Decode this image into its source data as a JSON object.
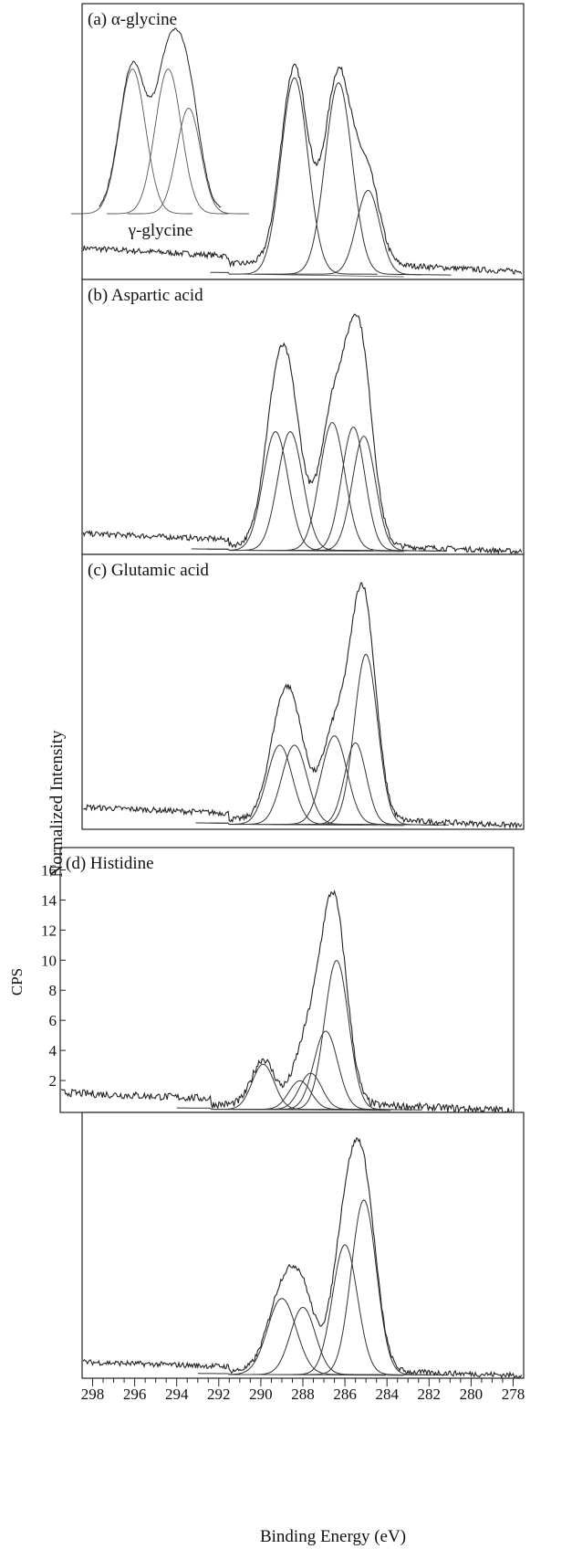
{
  "figure": {
    "ylabel": "Normalized Intensity",
    "xlabel": "Binding Energy (eV)",
    "x_ticks": [
      298,
      296,
      294,
      292,
      290,
      288,
      286,
      284,
      282,
      280,
      278
    ],
    "inset_ylabel": "CPS",
    "inset_y_ticks": [
      2,
      4,
      6,
      8,
      10,
      12,
      14,
      16
    ]
  },
  "chart_data": [
    {
      "type": "line",
      "title": "(a) α-glycine",
      "xlim": [
        298.5,
        277.5
      ],
      "grid": false,
      "baseline": {
        "left": 0.12,
        "right": 0.02
      },
      "components": [
        {
          "center": 288.4,
          "height": 0.82,
          "fwhm": 1.5
        },
        {
          "center": 286.3,
          "height": 0.8,
          "fwhm": 1.5
        },
        {
          "center": 284.9,
          "height": 0.35,
          "fwhm": 1.3
        }
      ],
      "inset": {
        "label": "γ-glycine",
        "components": [
          {
            "center": 295.8,
            "height": 0.96,
            "fwhm": 1.2
          },
          {
            "center": 294.4,
            "height": 0.96,
            "fwhm": 1.2
          },
          {
            "center": 293.6,
            "height": 0.7,
            "fwhm": 1.1
          }
        ]
      }
    },
    {
      "type": "line",
      "title": "(b) Aspartic acid",
      "xlim": [
        298.5,
        277.5
      ],
      "grid": false,
      "baseline": {
        "left": 0.08,
        "right": 0.0
      },
      "components": [
        {
          "center": 289.3,
          "height": 0.52,
          "fwhm": 1.4
        },
        {
          "center": 288.6,
          "height": 0.52,
          "fwhm": 1.4
        },
        {
          "center": 286.6,
          "height": 0.56,
          "fwhm": 1.4
        },
        {
          "center": 285.6,
          "height": 0.54,
          "fwhm": 1.3
        },
        {
          "center": 285.1,
          "height": 0.5,
          "fwhm": 1.3
        }
      ]
    },
    {
      "type": "line",
      "title": "(c) Glutamic acid",
      "xlim": [
        298.5,
        277.5
      ],
      "grid": false,
      "baseline": {
        "left": 0.08,
        "right": 0.0
      },
      "components": [
        {
          "center": 289.1,
          "height": 0.34,
          "fwhm": 1.4
        },
        {
          "center": 288.4,
          "height": 0.34,
          "fwhm": 1.4
        },
        {
          "center": 286.5,
          "height": 0.38,
          "fwhm": 1.4
        },
        {
          "center": 285.5,
          "height": 0.35,
          "fwhm": 1.2
        },
        {
          "center": 285.0,
          "height": 0.73,
          "fwhm": 1.3
        }
      ]
    },
    {
      "type": "line",
      "title": "(d) Histidine",
      "xlim": [
        298.5,
        277.5
      ],
      "ylim": [
        0,
        17
      ],
      "ylabel": "CPS",
      "grid": false,
      "baseline": {
        "left": 1.2,
        "right": 0.0
      },
      "components": [
        {
          "center": 289.1,
          "height": 3.0,
          "fwhm": 1.2
        },
        {
          "center": 287.4,
          "height": 1.9,
          "fwhm": 1.2
        },
        {
          "center": 286.9,
          "height": 2.4,
          "fwhm": 1.2
        },
        {
          "center": 286.2,
          "height": 5.2,
          "fwhm": 1.3
        },
        {
          "center": 285.7,
          "height": 9.9,
          "fwhm": 1.3
        }
      ]
    },
    {
      "type": "line",
      "title": "",
      "xlim": [
        298.5,
        277.5
      ],
      "grid": false,
      "baseline": {
        "left": 0.06,
        "right": 0.0
      },
      "components": [
        {
          "center": 289.0,
          "height": 0.34,
          "fwhm": 1.6
        },
        {
          "center": 288.0,
          "height": 0.3,
          "fwhm": 1.4
        },
        {
          "center": 286.0,
          "height": 0.58,
          "fwhm": 1.4
        },
        {
          "center": 285.1,
          "height": 0.78,
          "fwhm": 1.4
        }
      ]
    }
  ]
}
